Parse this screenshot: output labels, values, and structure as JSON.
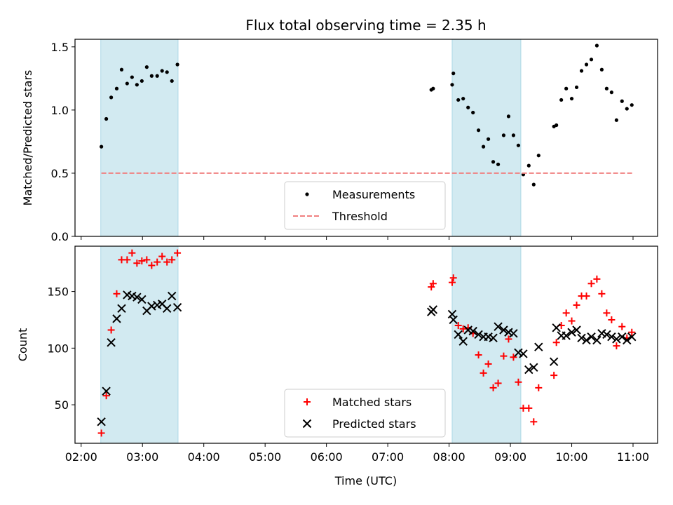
{
  "chart_data": {
    "type": "scatter",
    "title": "Flux total observing time = 2.35 h",
    "xlabel": "Time (UTC)",
    "x_unit": "hours",
    "xlim": [
      1.9,
      11.4
    ],
    "xticks": [
      2,
      3,
      4,
      5,
      6,
      7,
      8,
      9,
      10,
      11
    ],
    "xtick_labels": [
      "02:00",
      "03:00",
      "04:00",
      "05:00",
      "06:00",
      "07:00",
      "08:00",
      "09:00",
      "10:00",
      "11:00"
    ],
    "shaded_intervals": [
      [
        2.32,
        3.58
      ],
      [
        8.05,
        9.17
      ]
    ],
    "shade_color": "#add8e6",
    "panels": [
      {
        "ylabel": "Matched/Predicted stars",
        "ylim": [
          0,
          1.56
        ],
        "yticks": [
          0.0,
          0.5,
          1.0,
          1.5
        ],
        "ytick_labels": [
          "0.0",
          "0.5",
          "1.0",
          "1.5"
        ],
        "legend_position": "lower-center",
        "series": [
          {
            "name": "Measurements",
            "marker": "dot",
            "color": "#000000",
            "x": [
              2.33,
              2.41,
              2.49,
              2.58,
              2.66,
              2.75,
              2.83,
              2.91,
              2.99,
              3.07,
              3.15,
              3.24,
              3.32,
              3.4,
              3.48,
              3.57,
              7.71,
              7.74,
              8.05,
              8.07,
              8.15,
              8.23,
              8.31,
              8.39,
              8.48,
              8.56,
              8.64,
              8.72,
              8.8,
              8.89,
              8.97,
              9.05,
              9.13,
              9.21,
              9.3,
              9.38,
              9.46,
              9.71,
              9.75,
              9.83,
              9.91,
              10.0,
              10.08,
              10.16,
              10.24,
              10.32,
              10.41,
              10.49,
              10.57,
              10.65,
              10.73,
              10.82,
              10.9,
              10.98
            ],
            "y": [
              0.71,
              0.93,
              1.1,
              1.17,
              1.32,
              1.21,
              1.26,
              1.2,
              1.23,
              1.34,
              1.27,
              1.27,
              1.31,
              1.3,
              1.23,
              1.36,
              1.16,
              1.17,
              1.2,
              1.29,
              1.08,
              1.09,
              1.02,
              0.98,
              0.84,
              0.71,
              0.77,
              0.59,
              0.57,
              0.8,
              0.95,
              0.8,
              0.72,
              0.49,
              0.56,
              0.41,
              0.64,
              0.87,
              0.88,
              1.08,
              1.17,
              1.09,
              1.18,
              1.31,
              1.36,
              1.4,
              1.51,
              1.32,
              1.17,
              1.14,
              0.92,
              1.07,
              1.01,
              1.04
            ]
          },
          {
            "name": "Threshold",
            "marker": "dashed-line",
            "color": "#f08080",
            "x": [
              2.33,
              11.0
            ],
            "y": [
              0.5,
              0.5
            ]
          }
        ]
      },
      {
        "ylabel": "Count",
        "ylim": [
          16,
          190
        ],
        "yticks": [
          50,
          100,
          150
        ],
        "ytick_labels": [
          "50",
          "100",
          "150"
        ],
        "legend_position": "lower-center",
        "series": [
          {
            "name": "Matched stars",
            "marker": "plus",
            "color": "#ff0000",
            "x": [
              2.33,
              2.41,
              2.49,
              2.58,
              2.66,
              2.75,
              2.83,
              2.91,
              2.99,
              3.07,
              3.15,
              3.24,
              3.32,
              3.4,
              3.48,
              3.57,
              7.71,
              7.74,
              8.05,
              8.07,
              8.15,
              8.23,
              8.31,
              8.39,
              8.48,
              8.56,
              8.64,
              8.72,
              8.8,
              8.89,
              8.97,
              9.05,
              9.13,
              9.21,
              9.3,
              9.38,
              9.46,
              9.71,
              9.75,
              9.83,
              9.91,
              10.0,
              10.08,
              10.16,
              10.24,
              10.32,
              10.41,
              10.49,
              10.57,
              10.65,
              10.73,
              10.82,
              10.9,
              10.98
            ],
            "y": [
              25,
              58,
              116,
              148,
              178,
              178,
              184,
              175,
              177,
              178,
              173,
              176,
              181,
              176,
              178,
              184,
              154,
              157,
              158,
              162,
              120,
              117,
              118,
              113,
              94,
              78,
              86,
              65,
              69,
              93,
              108,
              92,
              70,
              47,
              47,
              35,
              65,
              76,
              105,
              120,
              131,
              124,
              138,
              146,
              146,
              157,
              161,
              148,
              131,
              125,
              102,
              119,
              109,
              114
            ]
          },
          {
            "name": "Predicted stars",
            "marker": "x",
            "color": "#000000",
            "x": [
              2.33,
              2.41,
              2.49,
              2.58,
              2.66,
              2.75,
              2.83,
              2.91,
              2.99,
              3.07,
              3.15,
              3.24,
              3.32,
              3.4,
              3.48,
              3.57,
              7.71,
              7.74,
              8.05,
              8.07,
              8.15,
              8.23,
              8.31,
              8.39,
              8.48,
              8.56,
              8.64,
              8.72,
              8.8,
              8.89,
              8.97,
              9.05,
              9.13,
              9.21,
              9.3,
              9.38,
              9.46,
              9.71,
              9.75,
              9.83,
              9.91,
              10.0,
              10.08,
              10.16,
              10.24,
              10.32,
              10.41,
              10.49,
              10.57,
              10.65,
              10.73,
              10.82,
              10.9,
              10.98
            ],
            "y": [
              35,
              62,
              105,
              126,
              135,
              147,
              146,
              145,
              143,
              133,
              137,
              138,
              139,
              135,
              146,
              136,
              132,
              134,
              130,
              125,
              112,
              106,
              116,
              115,
              112,
              110,
              110,
              109,
              119,
              116,
              114,
              113,
              96,
              95,
              81,
              83,
              101,
              88,
              118,
              111,
              111,
              114,
              116,
              109,
              107,
              110,
              107,
              113,
              112,
              110,
              108,
              110,
              107,
              110
            ]
          }
        ]
      }
    ]
  }
}
